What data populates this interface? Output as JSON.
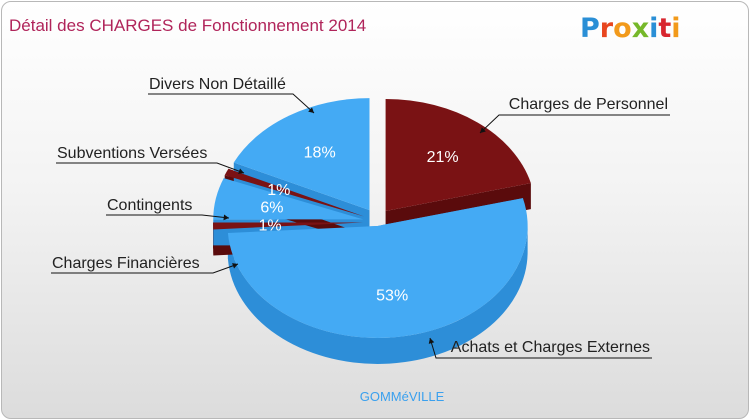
{
  "chart_data": {
    "type": "pie",
    "title": "Détail des CHARGES de Fonctionnement 2014",
    "subtitle": "GOMMéVILLE",
    "slices": [
      {
        "name": "Charges de Personnel",
        "value": 21,
        "label": "21%",
        "color": "#7a1214",
        "side": "#5a0b0c"
      },
      {
        "name": "Achats et Charges Externes",
        "value": 53,
        "label": "53%",
        "color": "#44aaf4",
        "side": "#2d8ed8"
      },
      {
        "name": "Charges Financières",
        "value": 1,
        "label": "1%",
        "color": "#7a1214",
        "side": "#5a0b0c"
      },
      {
        "name": "Contingents",
        "value": 6,
        "label": "6%",
        "color": "#44aaf4",
        "side": "#2d8ed8"
      },
      {
        "name": "Subventions Versées",
        "value": 1,
        "label": "1%",
        "color": "#7a1214",
        "side": "#5a0b0c"
      },
      {
        "name": "Divers Non Détaillé",
        "value": 18,
        "label": "18%",
        "color": "#44aaf4",
        "side": "#2d8ed8"
      }
    ]
  },
  "brand": {
    "letters": [
      "P",
      "r",
      "o",
      "x",
      "i",
      "t",
      "i"
    ],
    "colors": [
      "#2a8fd6",
      "#e8461f",
      "#f29a1b",
      "#76b82a",
      "#2a8fd6",
      "#d8262f",
      "#f29a1b"
    ]
  }
}
